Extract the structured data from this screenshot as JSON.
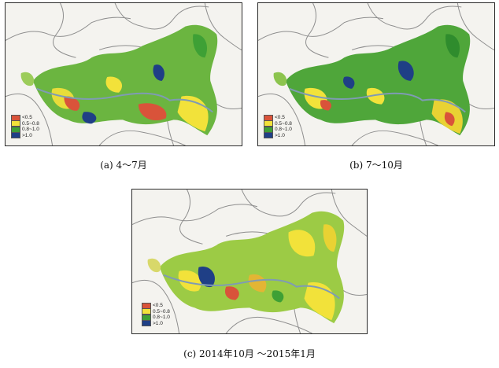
{
  "panels": [
    {
      "id": "a",
      "caption": "(a)  4～7月",
      "legend": [
        {
          "label": "<0.5",
          "color": "#d9533a"
        },
        {
          "label": "0.5~0.8",
          "color": "#f2e23a"
        },
        {
          "label": "0.8~1.0",
          "color": "#3ea035"
        },
        {
          "label": ">1.0",
          "color": "#1f3f86"
        }
      ]
    },
    {
      "id": "b",
      "caption": "(b)  7～10月",
      "legend": [
        {
          "label": "<0.5",
          "color": "#d9533a"
        },
        {
          "label": "0.5~0.8",
          "color": "#f2e23a"
        },
        {
          "label": "0.8~1.0",
          "color": "#3ea035"
        },
        {
          "label": ">1.0",
          "color": "#1f3f86"
        }
      ]
    },
    {
      "id": "c",
      "caption": "(c)  2014年10月 ～2015年1月",
      "legend": [
        {
          "label": "<0.5",
          "color": "#d9533a"
        },
        {
          "label": "0.5~0.8",
          "color": "#f2e23a"
        },
        {
          "label": "0.8~1.0",
          "color": "#3ea035"
        },
        {
          "label": ">1.0",
          "color": "#1f3f86"
        }
      ]
    }
  ],
  "colors": {
    "background": "#f4f3ef",
    "boundary": "#8e8e8e",
    "river": "#7f9bb4"
  }
}
